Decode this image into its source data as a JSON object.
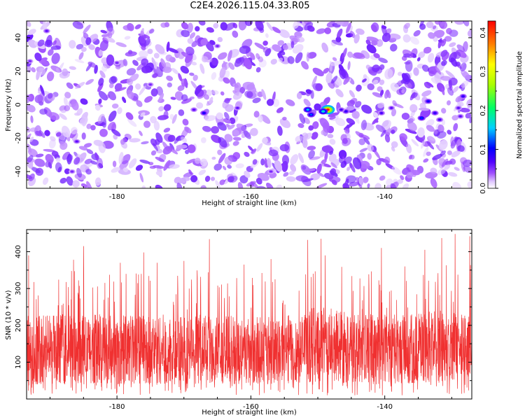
{
  "title": "C2E4.2026.115.04.33.R05",
  "chart_data": [
    {
      "type": "heatmap",
      "xlabel": "Height of straight line (km)",
      "ylabel": "Frequency (Hz)",
      "xlim": [
        -193.5,
        -127
      ],
      "ylim": [
        -50,
        50
      ],
      "xticks": [
        -180,
        -160,
        -140
      ],
      "yticks": [
        -40,
        -20,
        0,
        20,
        40
      ],
      "grid": false,
      "colorbar": {
        "label": "Normalized spectral amplitude",
        "range": [
          0,
          0.43
        ],
        "ticks": [
          0.0,
          0.1,
          0.2,
          0.3,
          0.4
        ],
        "colormap": [
          "#ffffff",
          "#d6b3ff",
          "#8a2be2",
          "#5a00ff",
          "#0000ff",
          "#00ccff",
          "#00ff66",
          "#ffff00",
          "#ff8000",
          "#ff0000"
        ]
      },
      "background_level": 0.04,
      "hotspots": [
        {
          "x": -148.5,
          "y": -3,
          "value": 0.42
        },
        {
          "x": -149.2,
          "y": -4,
          "value": 0.18
        },
        {
          "x": -151.5,
          "y": -3,
          "value": 0.16
        },
        {
          "x": -151.0,
          "y": -6,
          "value": 0.13
        },
        {
          "x": -145.8,
          "y": -4,
          "value": 0.09
        },
        {
          "x": -146.5,
          "y": -3,
          "value": 0.08
        },
        {
          "x": -140.5,
          "y": -5,
          "value": 0.08
        },
        {
          "x": -139.0,
          "y": -2,
          "value": 0.07
        },
        {
          "x": -134.5,
          "y": -8,
          "value": 0.12
        },
        {
          "x": -133.5,
          "y": 2,
          "value": 0.1
        },
        {
          "x": -132.5,
          "y": -5,
          "value": 0.09
        },
        {
          "x": -131.8,
          "y": -9,
          "value": 0.08
        },
        {
          "x": -128.3,
          "y": 5,
          "value": 0.09
        },
        {
          "x": -129.0,
          "y": -2,
          "value": 0.07
        },
        {
          "x": -128.7,
          "y": -7,
          "value": 0.07
        },
        {
          "x": -167.0,
          "y": -5,
          "value": 0.1
        },
        {
          "x": -168.5,
          "y": -3,
          "value": 0.07
        },
        {
          "x": -162.0,
          "y": -2,
          "value": 0.07
        },
        {
          "x": -190.5,
          "y": 44,
          "value": 0.07
        },
        {
          "x": -186.0,
          "y": -22,
          "value": 0.07
        },
        {
          "x": -186.7,
          "y": -40,
          "value": 0.06
        },
        {
          "x": -193.0,
          "y": 26,
          "value": 0.06
        },
        {
          "x": -165.0,
          "y": 35,
          "value": 0.06
        },
        {
          "x": -175.0,
          "y": 12,
          "value": 0.06
        },
        {
          "x": -157.0,
          "y": -40,
          "value": 0.06
        },
        {
          "x": -180.0,
          "y": 25,
          "value": 0.06
        }
      ]
    },
    {
      "type": "line",
      "xlabel": "Height of straight line (km)",
      "ylabel": "SNR (10 * v/v)",
      "xlim": [
        -193.5,
        -127
      ],
      "ylim": [
        0,
        460
      ],
      "xticks": [
        -180,
        -160,
        -140
      ],
      "yticks": [
        100,
        200,
        300,
        400
      ],
      "grid": false,
      "color": "#f03030",
      "typical_range": [
        40,
        230
      ],
      "peaks": [
        {
          "x": -193.2,
          "y": 390
        },
        {
          "x": -186.5,
          "y": 378
        },
        {
          "x": -185.0,
          "y": 415
        },
        {
          "x": -179.5,
          "y": 370
        },
        {
          "x": -176.0,
          "y": 398
        },
        {
          "x": -174.0,
          "y": 370
        },
        {
          "x": -170.0,
          "y": 375
        },
        {
          "x": -166.2,
          "y": 434
        },
        {
          "x": -161.0,
          "y": 365
        },
        {
          "x": -157.0,
          "y": 380
        },
        {
          "x": -151.5,
          "y": 432
        },
        {
          "x": -149.5,
          "y": 435
        },
        {
          "x": -148.9,
          "y": 390
        },
        {
          "x": -140.5,
          "y": 410
        },
        {
          "x": -137.0,
          "y": 360
        },
        {
          "x": -134.0,
          "y": 405
        },
        {
          "x": -131.5,
          "y": 437
        },
        {
          "x": -129.5,
          "y": 448
        },
        {
          "x": -127.3,
          "y": 442
        }
      ]
    }
  ]
}
